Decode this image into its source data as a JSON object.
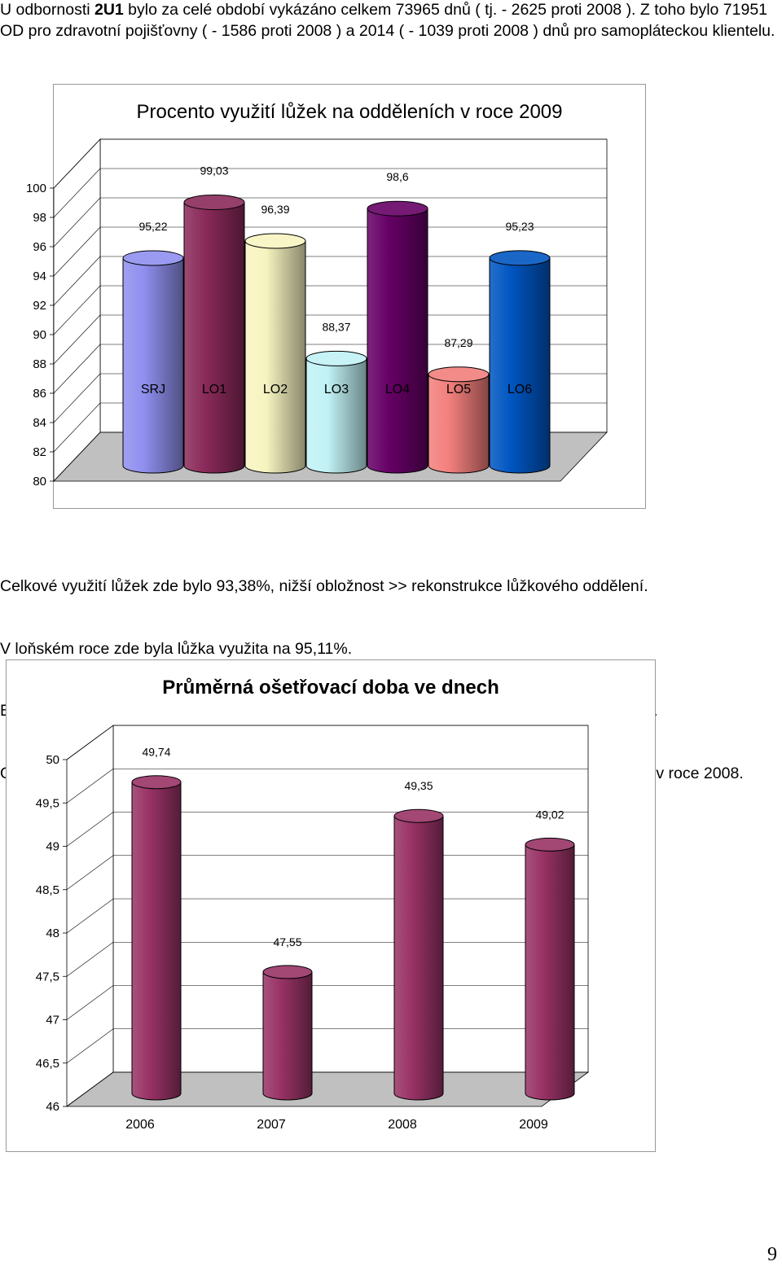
{
  "intro": {
    "t1": "U odbornosti ",
    "bold": "2U1",
    "t2": " bylo za celé období vykázáno celkem 73965 dnů ( tj. - 2625 proti 2008 ). Z toho bylo 71951 OD pro zdravotní pojišťovny ( - 1586 proti 2008 ) a 2014 ( - 1039 proti 2008 ) dnů pro samopláteckou klientelu."
  },
  "middle": [
    "Celkové využití lůžek zde bylo 93,38%, nižší obložnost >> rekonstrukce lůžkového oddělení.",
    "V loňském roce zde byla lůžka využita na 95,11%.",
    "Bylo zde přijato 1664 (v roce 2008 - 1674 ) a propuštěno 1665 (v roce 2008 - 1706 ) pacientů.",
    "Ošetřovali jsme na tomto oddělení průměrně 46,47 dne, což je cca o 0,5 dne kratší doba než v roce 2008."
  ],
  "page_number": "9",
  "chart_data": [
    {
      "type": "bar",
      "title": "Procento využití lůžek na odděleních v roce 2009",
      "categories": [
        "SRJ",
        "LO1",
        "LO2",
        "LO3",
        "LO4",
        "LO5",
        "LO6"
      ],
      "values": [
        95.22,
        99.03,
        96.39,
        88.37,
        98.6,
        87.29,
        95.23
      ],
      "value_labels": [
        "95,22",
        "99,03",
        "96,39",
        "88,37",
        "98,6",
        "87,29",
        "95,23"
      ],
      "colors": [
        "#8f8fef",
        "#8a2a5a",
        "#f7f4c1",
        "#c1f2f5",
        "#660066",
        "#f27f7c",
        "#0056c2"
      ],
      "yticks": [
        "80",
        "82",
        "84",
        "86",
        "88",
        "90",
        "92",
        "94",
        "96",
        "98",
        "100"
      ],
      "ylim": [
        80,
        100
      ],
      "style": "3d-cylinder",
      "legend": "none"
    },
    {
      "type": "bar",
      "title": "Průměrná ošetřovací doba ve dnech",
      "categories": [
        "2006",
        "2007",
        "2008",
        "2009"
      ],
      "values": [
        49.74,
        47.55,
        49.35,
        49.02
      ],
      "value_labels": [
        "49,74",
        "47,55",
        "49,35",
        "49,02"
      ],
      "colors": [
        "#993366"
      ],
      "yticks": [
        "46",
        "46,5",
        "47",
        "47,5",
        "48",
        "48,5",
        "49",
        "49,5",
        "50"
      ],
      "ylim": [
        46,
        50
      ],
      "style": "3d-cylinder",
      "legend": "none"
    }
  ]
}
